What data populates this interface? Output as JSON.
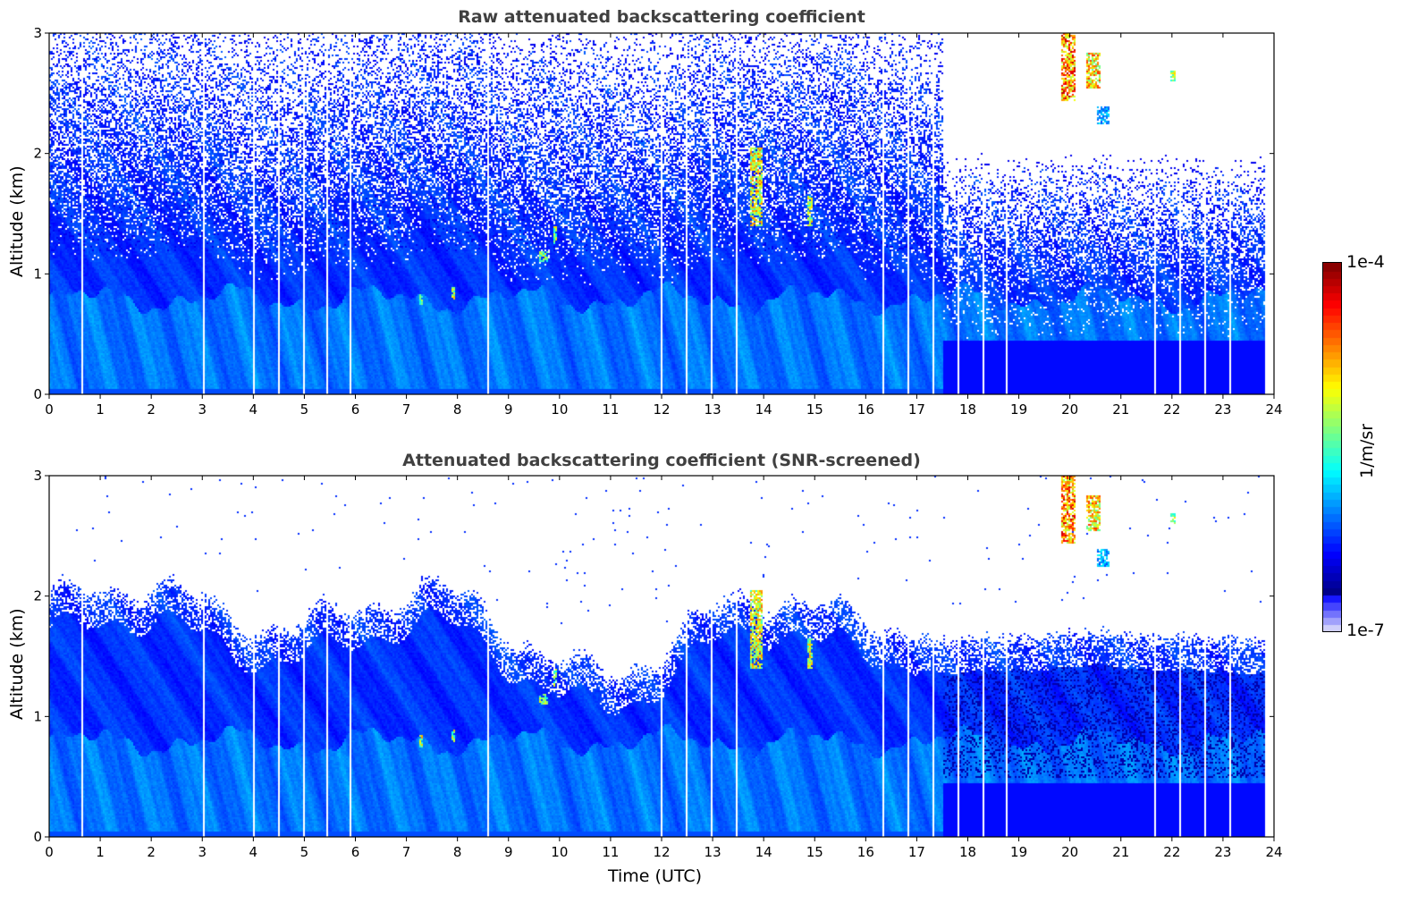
{
  "chart_data": [
    {
      "type": "heatmap",
      "title": "Raw attenuated backscattering coefficient",
      "xlabel": "",
      "ylabel": "Altitude (km)",
      "xlim": [
        0,
        24
      ],
      "ylim": [
        0,
        3
      ],
      "xticks": [
        "0",
        "1",
        "2",
        "3",
        "4",
        "5",
        "6",
        "7",
        "8",
        "9",
        "10",
        "11",
        "12",
        "13",
        "14",
        "15",
        "16",
        "17",
        "18",
        "19",
        "20",
        "21",
        "22",
        "23",
        "24"
      ],
      "yticks": [
        "0",
        "1",
        "2",
        "3"
      ],
      "screened": false
    },
    {
      "type": "heatmap",
      "title": "Attenuated backscattering coefficient (SNR-screened)",
      "xlabel": "Time (UTC)",
      "ylabel": "Altitude (km)",
      "xlim": [
        0,
        24
      ],
      "ylim": [
        0,
        3
      ],
      "xticks": [
        "0",
        "1",
        "2",
        "3",
        "4",
        "5",
        "6",
        "7",
        "8",
        "9",
        "10",
        "11",
        "12",
        "13",
        "14",
        "15",
        "16",
        "17",
        "18",
        "19",
        "20",
        "21",
        "22",
        "23",
        "24"
      ],
      "yticks": [
        "0",
        "1",
        "2",
        "3"
      ],
      "screened": true
    }
  ],
  "data_end_time": 23.8,
  "data_gaps_utc": [
    0.62,
    3.0,
    4.0,
    4.47,
    4.96,
    5.43,
    5.9,
    8.59,
    11.98,
    12.47,
    12.95,
    13.44,
    16.33,
    16.82,
    17.31,
    17.79,
    18.28,
    18.75,
    21.66,
    22.15,
    22.62,
    23.11
  ],
  "cloud_features": [
    {
      "time": [
        19.8,
        20.1
      ],
      "altitude": [
        2.45,
        3.0
      ],
      "level": 0.95
    },
    {
      "time": [
        20.3,
        20.6
      ],
      "altitude": [
        2.55,
        2.85
      ],
      "level": 0.85
    },
    {
      "time": [
        20.5,
        20.75
      ],
      "altitude": [
        2.25,
        2.4
      ],
      "level": 0.45
    },
    {
      "time": [
        21.95,
        22.05
      ],
      "altitude": [
        2.6,
        2.7
      ],
      "level": 0.7
    },
    {
      "time": [
        13.7,
        13.95
      ],
      "altitude": [
        1.4,
        2.05
      ],
      "level": 0.8
    },
    {
      "time": [
        14.85,
        14.95
      ],
      "altitude": [
        1.4,
        1.65
      ],
      "level": 0.75
    },
    {
      "time": [
        9.85,
        9.95
      ],
      "altitude": [
        1.25,
        1.4
      ],
      "level": 0.7
    },
    {
      "time": [
        7.25,
        7.32
      ],
      "altitude": [
        0.75,
        0.85
      ],
      "level": 0.75
    },
    {
      "time": [
        7.85,
        7.92
      ],
      "altitude": [
        0.8,
        0.9
      ],
      "level": 0.75
    },
    {
      "time": [
        9.6,
        9.75
      ],
      "altitude": [
        1.1,
        1.2
      ],
      "level": 0.7
    }
  ],
  "colorbar": {
    "label": "1/m/sr",
    "max_label": "1e-4",
    "min_label": "1e-7",
    "min": 1e-07,
    "max": 0.0001,
    "scale": "log",
    "colormap": "jet-with-light-low-end"
  }
}
